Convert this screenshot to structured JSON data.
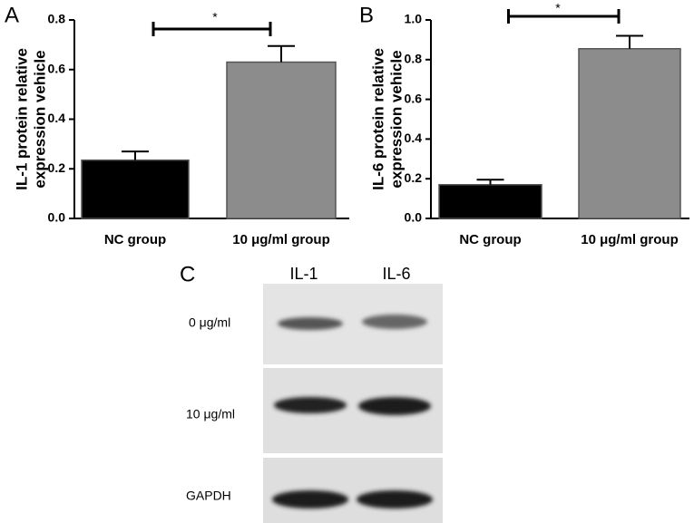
{
  "chart_data": [
    {
      "type": "bar",
      "panel": "A",
      "ylabel": [
        "IL-1 protein relative",
        "expression vehicle"
      ],
      "categories": [
        "NC group",
        "10 μg/ml group"
      ],
      "values": [
        0.235,
        0.63
      ],
      "errors": [
        0.035,
        0.065
      ],
      "colors": [
        "#000000",
        "#8c8c8c"
      ],
      "ylim": [
        0,
        0.8
      ],
      "yticks": [
        {
          "value": 0,
          "label": "0.0"
        },
        0.2,
        0.4,
        0.6,
        0.8
      ],
      "annotation": "*"
    },
    {
      "type": "bar",
      "panel": "B",
      "ylabel": [
        "IL-6 protein relative",
        "expression vehicle"
      ],
      "categories": [
        "NC group",
        "10 μg/ml group"
      ],
      "values": [
        0.17,
        0.855
      ],
      "errors": [
        0.025,
        0.065
      ],
      "colors": [
        "#000000",
        "#8c8c8c"
      ],
      "ylim": [
        0,
        1.0
      ],
      "yticks": [
        {
          "value": 0,
          "label": "0.0"
        },
        0.2,
        0.4,
        0.6,
        0.8,
        {
          "value": 1.0,
          "label": "1.0"
        }
      ],
      "annotation": "*"
    }
  ],
  "blot": {
    "panel": "C",
    "columns": [
      "IL-1",
      "IL-6"
    ],
    "rows": [
      "0 μg/ml",
      "10 μg/ml",
      "GAPDH"
    ]
  }
}
